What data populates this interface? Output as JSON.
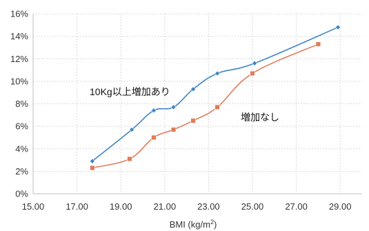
{
  "chart_data": {
    "type": "line",
    "title": "",
    "xlabel": "BMI  (kg/m",
    "xlabel_sup": "2",
    "xlabel_close": ")",
    "ylabel": "",
    "xlim": [
      15,
      30
    ],
    "ylim": [
      0,
      16
    ],
    "x_ticks": [
      15,
      17,
      19,
      21,
      23,
      25,
      27,
      29
    ],
    "x_tick_labels": [
      "15.00",
      "17.00",
      "19.00",
      "21.00",
      "23.00",
      "25.00",
      "27.00",
      "29.00"
    ],
    "y_ticks": [
      0,
      2,
      4,
      6,
      8,
      10,
      12,
      14,
      16
    ],
    "y_tick_labels": [
      "0%",
      "2%",
      "4%",
      "6%",
      "8%",
      "10%",
      "12%",
      "14%",
      "16%"
    ],
    "grid": true,
    "series": [
      {
        "name": "10Kg以上増加あり",
        "color": "#3d85c6",
        "marker": "diamond",
        "x": [
          17.7,
          19.5,
          20.5,
          21.4,
          22.3,
          23.4,
          25.1,
          28.9
        ],
        "y": [
          2.9,
          5.7,
          7.4,
          7.7,
          9.3,
          10.7,
          11.6,
          14.8
        ]
      },
      {
        "name": "増加なし",
        "color": "#e07b5b",
        "marker": "square",
        "x": [
          17.7,
          19.4,
          20.5,
          21.4,
          22.3,
          23.4,
          25.0,
          28.0
        ],
        "y": [
          2.3,
          3.1,
          5.0,
          5.7,
          6.5,
          7.7,
          10.7,
          13.3
        ]
      }
    ]
  }
}
